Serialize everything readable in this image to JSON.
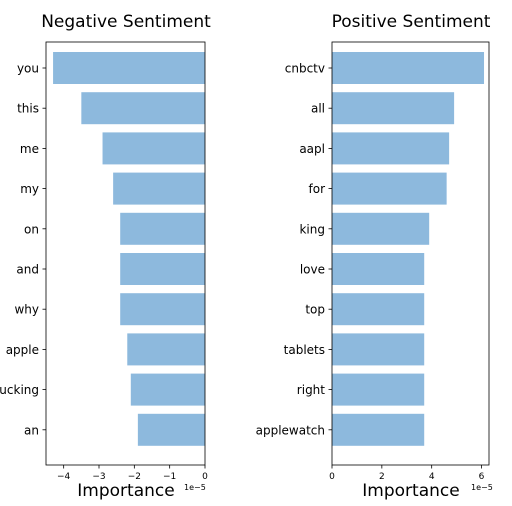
{
  "chart_data": [
    {
      "type": "bar",
      "orientation": "horizontal",
      "title": "Negative Sentiment",
      "xlabel": "Importance",
      "ylabel": "",
      "x_scale_label": "1e−5",
      "xlim": [
        -4.5,
        0
      ],
      "xticks": [
        {
          "value": -4,
          "label": "−4"
        },
        {
          "value": -3,
          "label": "−3"
        },
        {
          "value": -2,
          "label": "−2"
        },
        {
          "value": -1,
          "label": "−1"
        },
        {
          "value": 0,
          "label": "0"
        }
      ],
      "categories": [
        "you",
        "this",
        "me",
        "my",
        "on",
        "and",
        "why",
        "apple",
        "fucking",
        "an"
      ],
      "values": [
        -4.3,
        -3.5,
        -2.9,
        -2.6,
        -2.4,
        -2.4,
        -2.4,
        -2.2,
        -2.1,
        -1.9
      ],
      "color": "#8db9dd"
    },
    {
      "type": "bar",
      "orientation": "horizontal",
      "title": "Positive Sentiment",
      "xlabel": "Importance",
      "ylabel": "",
      "x_scale_label": "1e−5",
      "xlim": [
        0,
        6.3
      ],
      "xticks": [
        {
          "value": 0,
          "label": "0"
        },
        {
          "value": 2,
          "label": "2"
        },
        {
          "value": 4,
          "label": "4"
        },
        {
          "value": 6,
          "label": "6"
        }
      ],
      "categories": [
        "cnbctv",
        "all",
        "aapl",
        "for",
        "king",
        "love",
        "top",
        "tablets",
        "right",
        "applewatch"
      ],
      "values": [
        6.1,
        4.9,
        4.7,
        4.6,
        3.9,
        3.7,
        3.7,
        3.7,
        3.7,
        3.7
      ],
      "color": "#8db9dd"
    }
  ]
}
